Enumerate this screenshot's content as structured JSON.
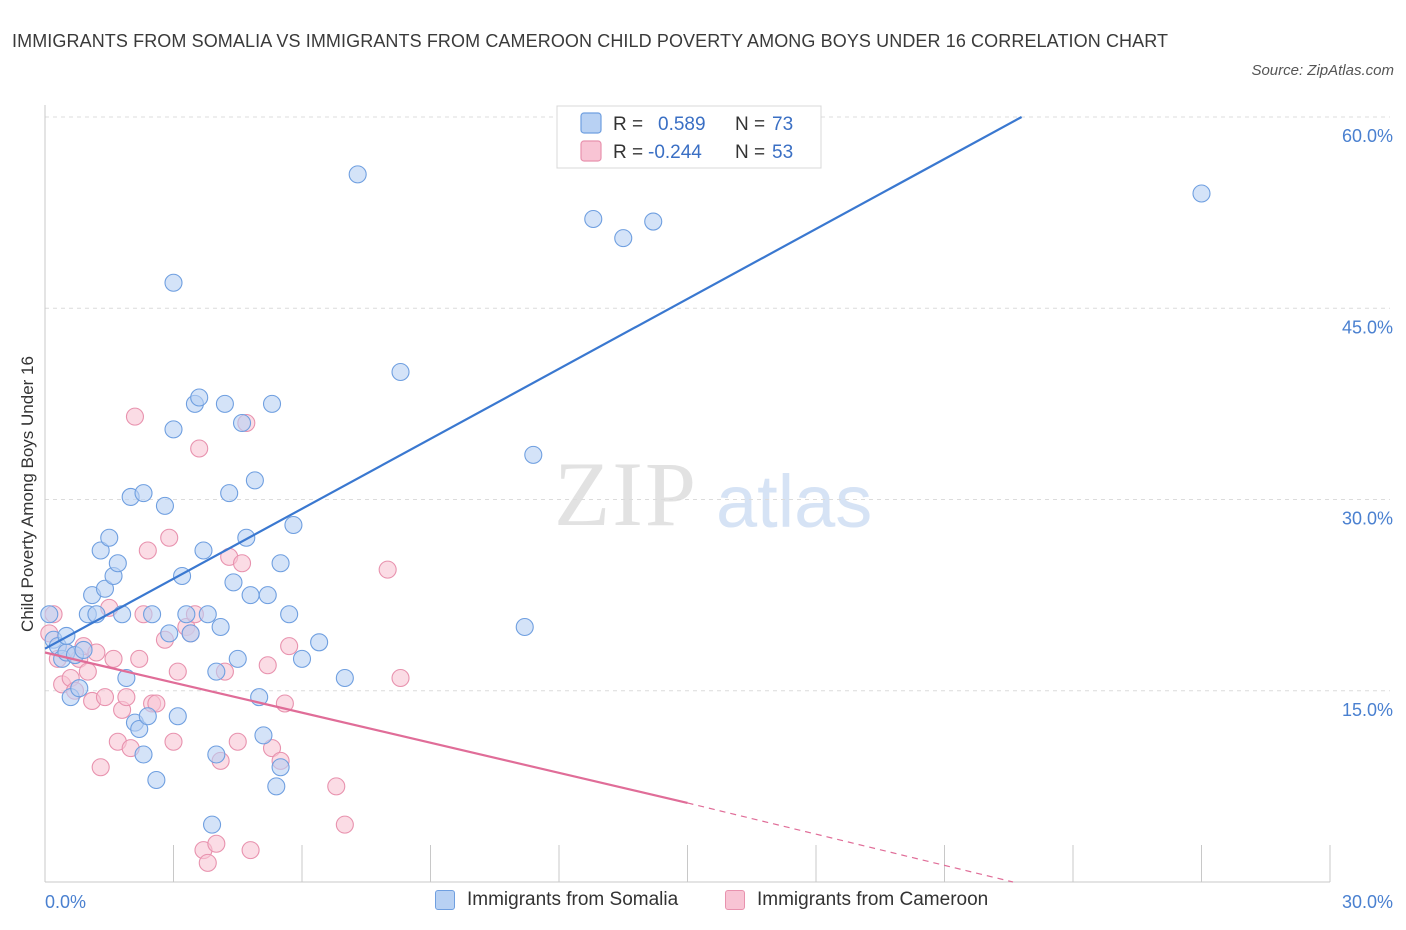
{
  "title": "IMMIGRANTS FROM SOMALIA VS IMMIGRANTS FROM CAMEROON CHILD POVERTY AMONG BOYS UNDER 16 CORRELATION CHART",
  "source": "Source: ZipAtlas.com",
  "watermark": {
    "zip": "ZIP",
    "atlas": "atlas"
  },
  "colors": {
    "somalia_fill": "#b8d1f3",
    "somalia_stroke": "#6f9fe0",
    "somalia_line": "#3a78d0",
    "cameroon_fill": "#f8c4d4",
    "cameroon_stroke": "#e892ae",
    "cameroon_line": "#e06d98",
    "tick": "#4a80d0"
  },
  "legend_box": {
    "rows": [
      {
        "r_label": "R =",
        "r_value": "0.589",
        "n_label": "N =",
        "n_value": "73"
      },
      {
        "r_label": "R =",
        "r_value": "-0.244",
        "n_label": "N =",
        "n_value": "53"
      }
    ]
  },
  "bottom_legend": {
    "somalia": "Immigrants from Somalia",
    "cameroon": "Immigrants from Cameroon"
  },
  "chart_data": {
    "type": "scatter",
    "ylabel": "Child Poverty Among Boys Under 16",
    "xlim": [
      0,
      30
    ],
    "ylim": [
      0,
      60
    ],
    "x_tick_labels": [
      {
        "value": 0,
        "label": "0.0%"
      },
      {
        "value": 30,
        "label": "30.0%"
      }
    ],
    "y_tick_labels": [
      {
        "value": 15,
        "label": "15.0%"
      },
      {
        "value": 30,
        "label": "30.0%"
      },
      {
        "value": 45,
        "label": "45.0%"
      },
      {
        "value": 60,
        "label": "60.0%"
      }
    ],
    "y_gridlines": [
      15,
      30,
      45,
      60
    ],
    "x_minor_ticks": [
      3,
      6,
      9,
      12,
      15,
      18,
      21,
      24,
      27,
      30
    ],
    "series": [
      {
        "name": "Immigrants from Somalia",
        "r": 0.589,
        "n": 73,
        "trend": {
          "x0": 0,
          "y0": 18.3,
          "x1": 22.8,
          "y1": 60,
          "dashed_to": null
        },
        "points": [
          [
            0.1,
            21
          ],
          [
            0.2,
            19
          ],
          [
            0.3,
            18.5
          ],
          [
            0.4,
            17.5
          ],
          [
            0.5,
            18
          ],
          [
            0.6,
            14.5
          ],
          [
            0.7,
            17.8
          ],
          [
            0.5,
            19.3
          ],
          [
            0.8,
            15.2
          ],
          [
            0.9,
            18.2
          ],
          [
            1.0,
            21
          ],
          [
            1.1,
            22.5
          ],
          [
            1.3,
            26
          ],
          [
            1.2,
            21
          ],
          [
            1.4,
            23
          ],
          [
            1.5,
            27
          ],
          [
            1.6,
            24
          ],
          [
            1.7,
            25
          ],
          [
            1.8,
            21
          ],
          [
            1.9,
            16
          ],
          [
            2.0,
            30.2
          ],
          [
            2.3,
            30.5
          ],
          [
            2.1,
            12.5
          ],
          [
            2.2,
            12
          ],
          [
            2.4,
            13
          ],
          [
            2.3,
            10
          ],
          [
            2.5,
            21
          ],
          [
            2.6,
            8
          ],
          [
            2.8,
            29.5
          ],
          [
            2.9,
            19.5
          ],
          [
            3.0,
            35.5
          ],
          [
            3.1,
            13
          ],
          [
            3.2,
            24
          ],
          [
            3.3,
            21
          ],
          [
            3.5,
            37.5
          ],
          [
            3.6,
            38
          ],
          [
            3.4,
            19.5
          ],
          [
            3.7,
            26
          ],
          [
            3.8,
            21
          ],
          [
            3.9,
            4.5
          ],
          [
            4.0,
            10
          ],
          [
            4.1,
            20
          ],
          [
            4.2,
            37.5
          ],
          [
            4.3,
            30.5
          ],
          [
            4.4,
            23.5
          ],
          [
            4.5,
            17.5
          ],
          [
            4.6,
            36
          ],
          [
            4.7,
            27
          ],
          [
            4.8,
            22.5
          ],
          [
            4.9,
            31.5
          ],
          [
            5.0,
            14.5
          ],
          [
            5.1,
            11.5
          ],
          [
            5.2,
            22.5
          ],
          [
            5.3,
            37.5
          ],
          [
            5.4,
            7.5
          ],
          [
            5.5,
            9
          ],
          [
            5.7,
            21
          ],
          [
            5.8,
            28
          ],
          [
            6.0,
            17.5
          ],
          [
            6.4,
            18.8
          ],
          [
            5.5,
            25
          ],
          [
            7.0,
            16
          ],
          [
            7.3,
            55.5
          ],
          [
            8.3,
            40
          ],
          [
            11.2,
            20
          ],
          [
            11.4,
            33.5
          ],
          [
            12.8,
            52
          ],
          [
            13.5,
            50.5
          ],
          [
            14.2,
            51.8
          ],
          [
            14.0,
            58
          ],
          [
            27.0,
            54
          ],
          [
            3.0,
            47
          ],
          [
            4.0,
            16.5
          ]
        ]
      },
      {
        "name": "Immigrants from Cameroon",
        "r": -0.244,
        "n": 53,
        "trend": {
          "x0": 0,
          "y0": 18,
          "x1": 15,
          "y1": 6.2,
          "dashed_to": {
            "x": 22.6,
            "y": 0
          }
        },
        "points": [
          [
            0.1,
            19.5
          ],
          [
            0.2,
            21
          ],
          [
            0.3,
            17.5
          ],
          [
            0.4,
            15.5
          ],
          [
            0.5,
            18
          ],
          [
            0.6,
            16
          ],
          [
            0.7,
            15
          ],
          [
            0.8,
            17.5
          ],
          [
            0.9,
            18.5
          ],
          [
            1.0,
            16.5
          ],
          [
            1.1,
            14.2
          ],
          [
            1.2,
            18
          ],
          [
            1.3,
            9
          ],
          [
            1.4,
            14.5
          ],
          [
            1.5,
            21.5
          ],
          [
            1.6,
            17.5
          ],
          [
            1.7,
            11
          ],
          [
            1.8,
            13.5
          ],
          [
            1.9,
            14.5
          ],
          [
            2.0,
            10.5
          ],
          [
            2.1,
            36.5
          ],
          [
            2.2,
            17.5
          ],
          [
            2.3,
            21
          ],
          [
            2.4,
            26
          ],
          [
            2.5,
            14
          ],
          [
            2.6,
            14
          ],
          [
            2.8,
            19
          ],
          [
            2.9,
            27
          ],
          [
            3.0,
            11
          ],
          [
            3.1,
            16.5
          ],
          [
            3.3,
            20
          ],
          [
            3.4,
            19.5
          ],
          [
            3.5,
            21
          ],
          [
            3.6,
            34
          ],
          [
            3.7,
            2.5
          ],
          [
            3.8,
            1.5
          ],
          [
            4.0,
            3
          ],
          [
            4.1,
            9.5
          ],
          [
            4.2,
            16.5
          ],
          [
            4.3,
            25.5
          ],
          [
            4.5,
            11
          ],
          [
            4.6,
            25
          ],
          [
            4.7,
            36
          ],
          [
            4.8,
            2.5
          ],
          [
            5.2,
            17
          ],
          [
            5.3,
            10.5
          ],
          [
            5.5,
            9.5
          ],
          [
            5.6,
            14
          ],
          [
            5.7,
            18.5
          ],
          [
            6.8,
            7.5
          ],
          [
            7.0,
            4.5
          ],
          [
            8.0,
            24.5
          ],
          [
            8.3,
            16
          ]
        ]
      }
    ]
  }
}
